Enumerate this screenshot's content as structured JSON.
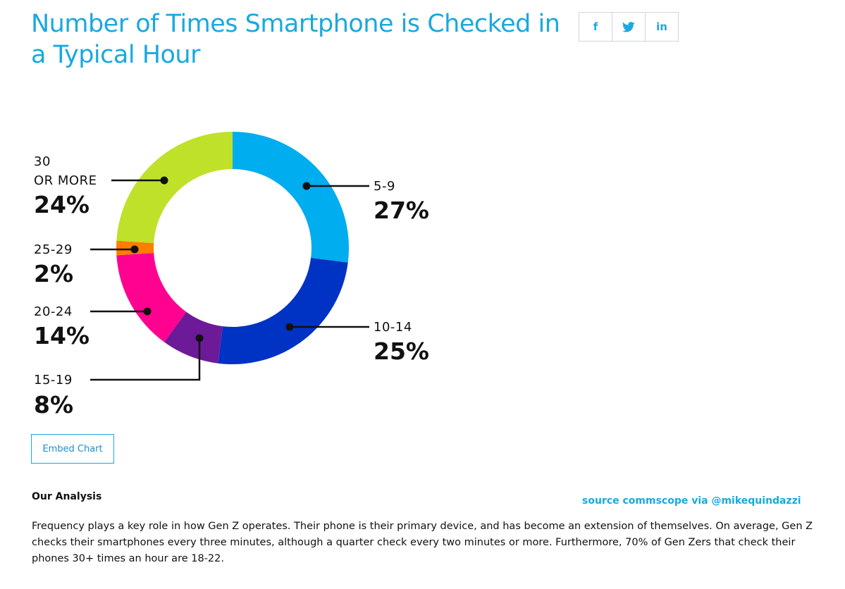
{
  "title": "Number of Times Smartphone is Checked in a Typical Hour",
  "share": {
    "facebook": "f",
    "twitter": "✦",
    "linkedin": "in"
  },
  "chart_data": {
    "type": "pie",
    "title": "Number of Times Smartphone is Checked in a Typical Hour",
    "donut": true,
    "slices": [
      {
        "range": "5-9",
        "pct_label": "27%",
        "value": 27,
        "color": "#00adee"
      },
      {
        "range": "10-14",
        "pct_label": "25%",
        "value": 25,
        "color": "#0033c4"
      },
      {
        "range": "15-19",
        "pct_label": "8%",
        "value": 8,
        "color": "#6d1a99"
      },
      {
        "range": "20-24",
        "pct_label": "14%",
        "value": 14,
        "color": "#ff0390"
      },
      {
        "range": "25-29",
        "pct_label": "2%",
        "value": 2,
        "color": "#ff7d00"
      },
      {
        "range": "30|OR MORE",
        "pct_label": "24%",
        "value": 24,
        "color": "#bfe12a"
      }
    ]
  },
  "embed_label": "Embed Chart",
  "analysis": {
    "heading": "Our Analysis",
    "source": "source commscope via @mikequindazzi",
    "body": "Frequency plays a key role in how Gen Z operates. Their phone is their primary device, and has become an extension of themselves. On average, Gen Z checks their smartphones every three minutes, although a quarter check every two minutes or more. Furthermore, 70% of Gen Zers that check their phones 30+ times an hour are 18-22."
  }
}
